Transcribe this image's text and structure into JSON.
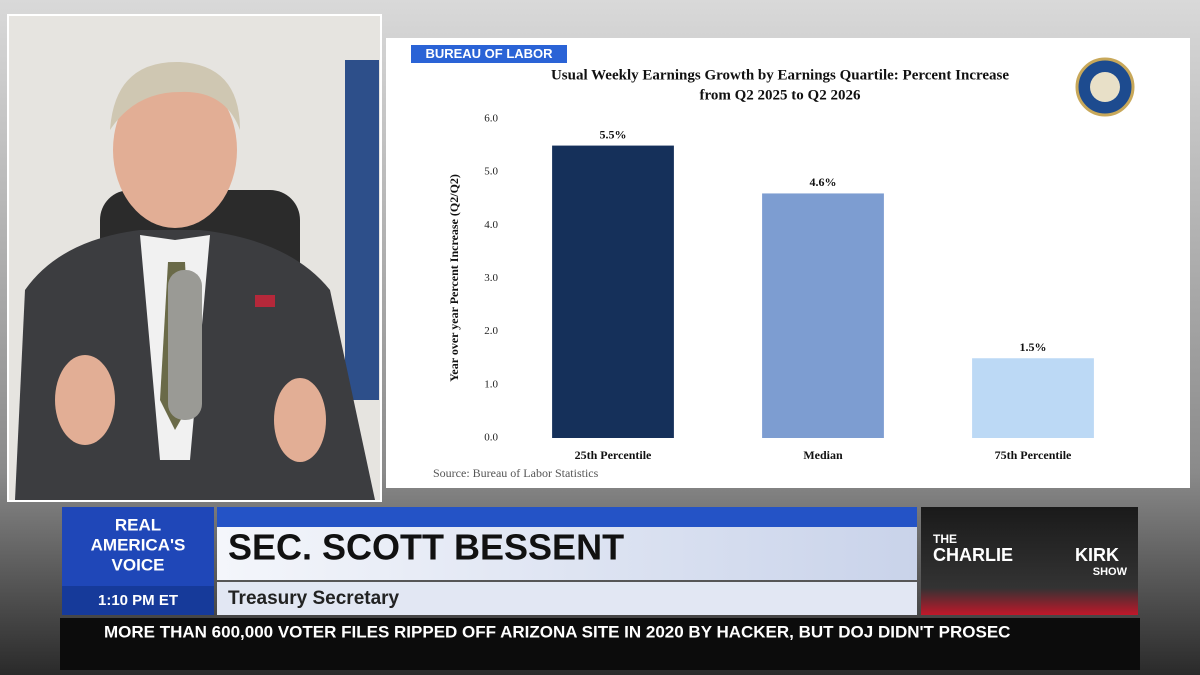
{
  "chart_data": {
    "type": "bar",
    "tag": "BUREAU OF LABOR",
    "title": [
      "Usual Weekly Earnings Growth by Earnings Quartile: Percent Increase",
      "from Q2 2025 to Q2 2026"
    ],
    "ylabel": "Year over year Percent Increase (Q2/Q2)",
    "categories": [
      "25th Percentile",
      "Median",
      "75th Percentile"
    ],
    "values": [
      5.5,
      4.6,
      1.5
    ],
    "value_labels": [
      "5.5%",
      "4.6%",
      "1.5%"
    ],
    "colors": [
      "#15305a",
      "#7d9dd1",
      "#bcd9f5"
    ],
    "ylim": [
      0,
      6
    ],
    "yticks": [
      {
        "value": 0,
        "label": "0.0"
      },
      {
        "value": 1,
        "label": "1.0"
      },
      {
        "value": 2,
        "label": "2.0"
      },
      {
        "value": 3,
        "label": "3.0"
      },
      {
        "value": 4,
        "label": "4.0"
      },
      {
        "value": 5,
        "label": "5.0"
      },
      {
        "value": 6,
        "label": "6.0"
      }
    ],
    "grid": false,
    "source": "Source: Bureau of Labor Statistics"
  },
  "broadcast": {
    "network_logo": [
      "REAL",
      "AMERICA'S",
      "VOICE"
    ],
    "time": "1:10 PM ET",
    "name": "SEC. SCOTT BESSENT",
    "role": "Treasury Secretary",
    "show_logo": [
      "THE",
      "CHARLIE",
      "KIRK",
      "SHOW"
    ],
    "ticker": "MORE THAN 600,000 VOTER FILES RIPPED OFF ARIZONA SITE IN 2020 BY HACKER, BUT DOJ DIDN'T PROSEC"
  }
}
